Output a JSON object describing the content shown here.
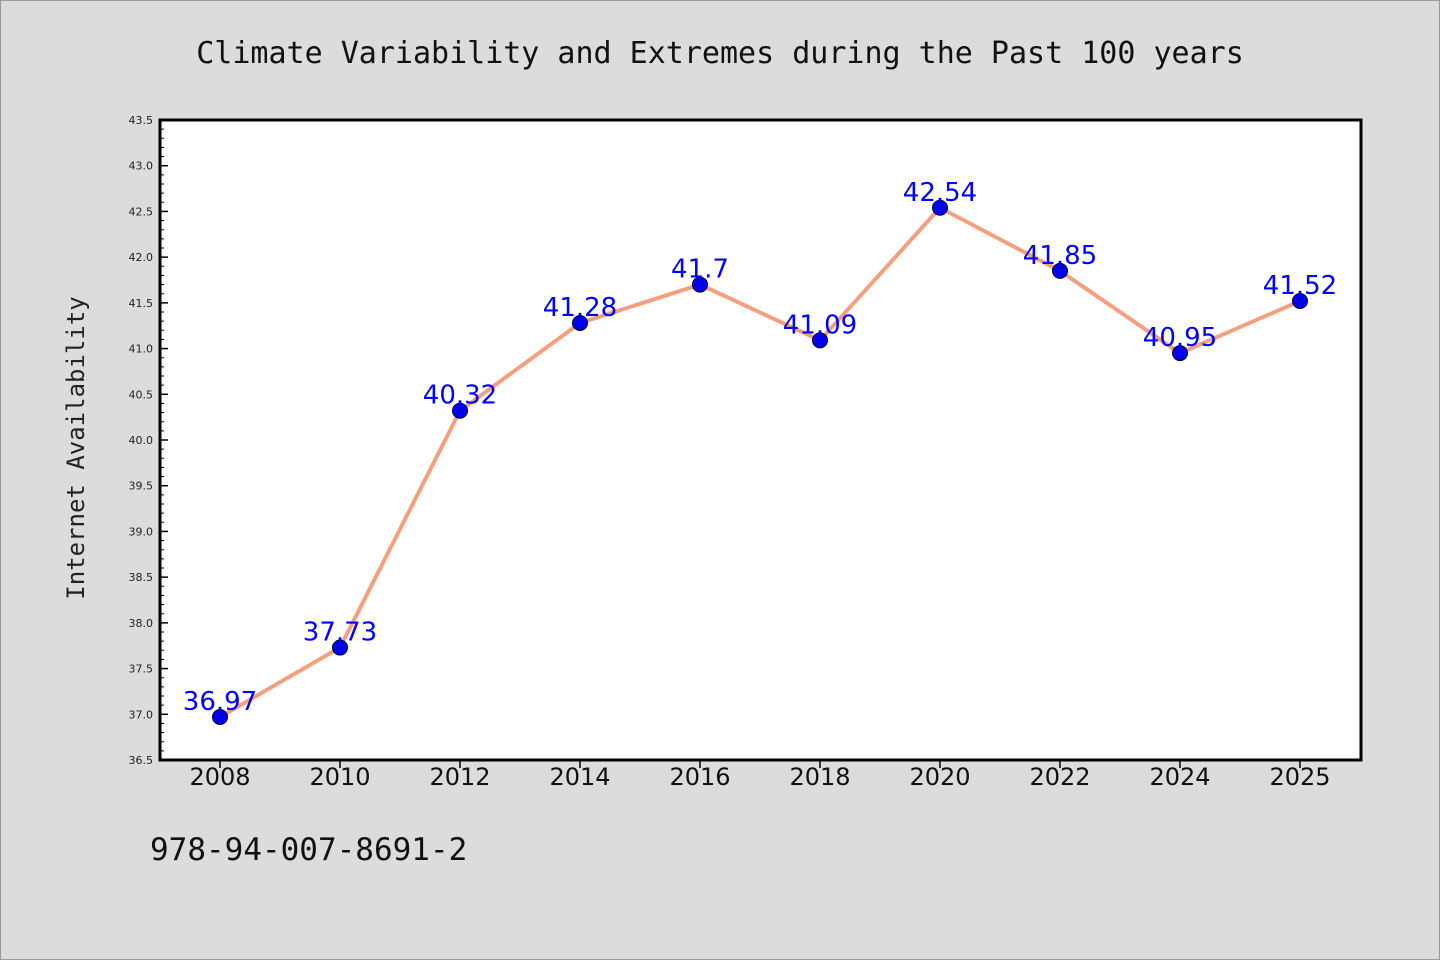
{
  "chart_data": {
    "type": "line",
    "title": "Climate Variability and Extremes during the Past 100 years",
    "xlabel": "",
    "ylabel": "Internet Availability",
    "categories": [
      "2008",
      "2010",
      "2012",
      "2014",
      "2016",
      "2018",
      "2020",
      "2022",
      "2024",
      "2025"
    ],
    "series": [
      {
        "values": [
          36.97,
          37.73,
          40.32,
          41.28,
          41.7,
          41.09,
          42.54,
          41.85,
          40.95,
          41.52
        ],
        "data_labels": [
          "36.97",
          "37.73",
          "40.32",
          "41.28",
          "41.7",
          "41.09",
          "42.54",
          "41.85",
          "40.95",
          "41.52"
        ]
      }
    ],
    "ylim": [
      36.5,
      43.5
    ],
    "yticks": [
      "36.5",
      "37.0",
      "37.5",
      "38.0",
      "38.5",
      "39.0",
      "39.5",
      "40.0",
      "40.5",
      "41.0",
      "41.5",
      "42.0",
      "42.5",
      "43.0",
      "43.5"
    ],
    "grid": false,
    "legend": "none",
    "colors": {
      "line": "#f4a07e",
      "marker": "#0000ee",
      "data_label": "#0000ff",
      "plot_background": "#ffffff",
      "page_background": "#dcdcdc"
    }
  },
  "footer_text": "978-94-007-8691-2"
}
